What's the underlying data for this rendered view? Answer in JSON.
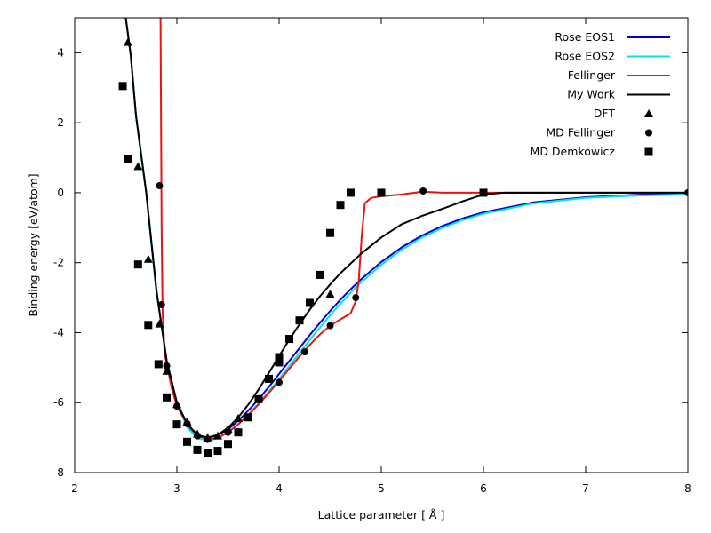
{
  "chart_data": {
    "type": "line",
    "title": "",
    "xlabel": "Lattice parameter [ Å ]",
    "ylabel": "Binding energy [eV/atom]",
    "xlim": [
      2,
      8
    ],
    "ylim": [
      -8,
      5
    ],
    "xticks": [
      "2",
      "3",
      "4",
      "5",
      "6",
      "7",
      "8"
    ],
    "yticks": [
      "-8",
      "-6",
      "-4",
      "-2",
      "0",
      "2",
      "4"
    ],
    "grid": false,
    "legend_position": "top-right",
    "series": [
      {
        "name": "Rose EOS1",
        "kind": "line",
        "color": "#0000cc",
        "points": [
          [
            2.5,
            5.0
          ],
          [
            2.55,
            3.9
          ],
          [
            2.6,
            2.2
          ],
          [
            2.7,
            0.0
          ],
          [
            2.8,
            -2.8
          ],
          [
            2.9,
            -4.8
          ],
          [
            3.0,
            -6.0
          ],
          [
            3.1,
            -6.65
          ],
          [
            3.2,
            -6.95
          ],
          [
            3.3,
            -7.0
          ],
          [
            3.4,
            -6.93
          ],
          [
            3.5,
            -6.76
          ],
          [
            3.6,
            -6.52
          ],
          [
            3.7,
            -6.22
          ],
          [
            3.8,
            -5.9
          ],
          [
            3.9,
            -5.55
          ],
          [
            4.0,
            -5.18
          ],
          [
            4.1,
            -4.81
          ],
          [
            4.2,
            -4.44
          ],
          [
            4.3,
            -4.07
          ],
          [
            4.4,
            -3.72
          ],
          [
            4.5,
            -3.38
          ],
          [
            4.6,
            -3.06
          ],
          [
            4.7,
            -2.76
          ],
          [
            4.8,
            -2.48
          ],
          [
            5.0,
            -1.98
          ],
          [
            5.2,
            -1.56
          ],
          [
            5.4,
            -1.22
          ],
          [
            5.6,
            -0.95
          ],
          [
            5.8,
            -0.73
          ],
          [
            6.0,
            -0.56
          ],
          [
            6.5,
            -0.27
          ],
          [
            7.0,
            -0.13
          ],
          [
            7.5,
            -0.06
          ],
          [
            8.0,
            -0.03
          ]
        ]
      },
      {
        "name": "Rose EOS2",
        "kind": "line",
        "color": "#00e5ee",
        "points": [
          [
            2.5,
            5.0
          ],
          [
            2.55,
            3.9
          ],
          [
            2.6,
            2.2
          ],
          [
            2.7,
            0.0
          ],
          [
            2.8,
            -2.8
          ],
          [
            2.9,
            -4.8
          ],
          [
            3.0,
            -6.02
          ],
          [
            3.1,
            -6.7
          ],
          [
            3.2,
            -7.02
          ],
          [
            3.3,
            -7.08
          ],
          [
            3.4,
            -7.02
          ],
          [
            3.5,
            -6.86
          ],
          [
            3.6,
            -6.62
          ],
          [
            3.7,
            -6.34
          ],
          [
            3.8,
            -6.02
          ],
          [
            3.9,
            -5.68
          ],
          [
            4.0,
            -5.32
          ],
          [
            4.1,
            -4.95
          ],
          [
            4.2,
            -4.58
          ],
          [
            4.3,
            -4.21
          ],
          [
            4.4,
            -3.85
          ],
          [
            4.5,
            -3.5
          ],
          [
            4.6,
            -3.17
          ],
          [
            4.7,
            -2.86
          ],
          [
            4.8,
            -2.57
          ],
          [
            5.0,
            -2.06
          ],
          [
            5.2,
            -1.63
          ],
          [
            5.4,
            -1.28
          ],
          [
            5.6,
            -1.0
          ],
          [
            5.8,
            -0.78
          ],
          [
            6.0,
            -0.6
          ],
          [
            6.5,
            -0.3
          ],
          [
            7.0,
            -0.15
          ],
          [
            7.5,
            -0.08
          ],
          [
            8.0,
            -0.05
          ]
        ]
      },
      {
        "name": "Fellinger",
        "kind": "line",
        "color": "#ee1111",
        "points": [
          [
            2.84,
            5.0
          ],
          [
            2.845,
            2.0
          ],
          [
            2.85,
            -1.0
          ],
          [
            2.86,
            -3.4
          ],
          [
            2.88,
            -4.6
          ],
          [
            2.95,
            -5.6
          ],
          [
            3.0,
            -6.1
          ],
          [
            3.1,
            -6.6
          ],
          [
            3.2,
            -6.95
          ],
          [
            3.3,
            -7.05
          ],
          [
            3.4,
            -7.0
          ],
          [
            3.5,
            -6.85
          ],
          [
            3.6,
            -6.62
          ],
          [
            3.7,
            -6.35
          ],
          [
            3.8,
            -6.05
          ],
          [
            3.9,
            -5.72
          ],
          [
            4.0,
            -5.38
          ],
          [
            4.1,
            -5.03
          ],
          [
            4.2,
            -4.68
          ],
          [
            4.3,
            -4.35
          ],
          [
            4.4,
            -4.05
          ],
          [
            4.5,
            -3.8
          ],
          [
            4.6,
            -3.62
          ],
          [
            4.7,
            -3.45
          ],
          [
            4.75,
            -3.1
          ],
          [
            4.78,
            -2.5
          ],
          [
            4.81,
            -1.2
          ],
          [
            4.84,
            -0.3
          ],
          [
            4.9,
            -0.15
          ],
          [
            5.0,
            -0.1
          ],
          [
            5.2,
            -0.05
          ],
          [
            5.4,
            0.03
          ],
          [
            5.6,
            0.0
          ],
          [
            8.0,
            0.0
          ]
        ]
      },
      {
        "name": "My Work",
        "kind": "line",
        "color": "#000000",
        "points": [
          [
            2.5,
            5.0
          ],
          [
            2.55,
            3.9
          ],
          [
            2.6,
            2.2
          ],
          [
            2.7,
            0.0
          ],
          [
            2.8,
            -2.8
          ],
          [
            2.9,
            -4.8
          ],
          [
            3.0,
            -6.0
          ],
          [
            3.1,
            -6.6
          ],
          [
            3.2,
            -6.92
          ],
          [
            3.3,
            -7.0
          ],
          [
            3.4,
            -6.92
          ],
          [
            3.5,
            -6.72
          ],
          [
            3.6,
            -6.42
          ],
          [
            3.7,
            -6.05
          ],
          [
            3.8,
            -5.62
          ],
          [
            3.9,
            -5.15
          ],
          [
            4.0,
            -4.67
          ],
          [
            4.1,
            -4.2
          ],
          [
            4.2,
            -3.76
          ],
          [
            4.3,
            -3.34
          ],
          [
            4.4,
            -2.96
          ],
          [
            4.5,
            -2.62
          ],
          [
            4.6,
            -2.3
          ],
          [
            4.8,
            -1.75
          ],
          [
            5.0,
            -1.28
          ],
          [
            5.2,
            -0.9
          ],
          [
            5.4,
            -0.66
          ],
          [
            5.6,
            -0.46
          ],
          [
            5.8,
            -0.24
          ],
          [
            6.0,
            -0.05
          ],
          [
            6.2,
            0.0
          ],
          [
            8.0,
            0.0
          ]
        ]
      },
      {
        "name": "DFT",
        "kind": "markers",
        "marker": "triangle",
        "color": "#000000",
        "points": [
          [
            2.52,
            4.3
          ],
          [
            2.62,
            0.75
          ],
          [
            2.72,
            -1.9
          ],
          [
            2.83,
            -3.75
          ],
          [
            2.9,
            -5.1
          ],
          [
            3.0,
            -6.05
          ],
          [
            3.1,
            -6.55
          ],
          [
            3.2,
            -6.9
          ],
          [
            3.3,
            -7.0
          ],
          [
            3.4,
            -6.95
          ],
          [
            3.5,
            -6.75
          ],
          [
            3.6,
            -6.45
          ],
          [
            4.5,
            -2.9
          ]
        ]
      },
      {
        "name": "MD Fellinger",
        "kind": "markers",
        "marker": "circle",
        "color": "#000000",
        "points": [
          [
            2.83,
            0.2
          ],
          [
            2.85,
            -3.2
          ],
          [
            2.9,
            -4.95
          ],
          [
            3.0,
            -6.1
          ],
          [
            3.1,
            -6.6
          ],
          [
            3.2,
            -6.95
          ],
          [
            3.3,
            -7.05
          ],
          [
            3.5,
            -6.85
          ],
          [
            3.8,
            -5.9
          ],
          [
            4.0,
            -5.42
          ],
          [
            4.25,
            -4.55
          ],
          [
            4.5,
            -3.8
          ],
          [
            4.75,
            -3.0
          ],
          [
            5.41,
            0.05
          ],
          [
            6.0,
            0.0
          ],
          [
            8.0,
            0.0
          ]
        ]
      },
      {
        "name": "MD Demkowicz",
        "kind": "markers",
        "marker": "square",
        "color": "#000000",
        "points": [
          [
            2.47,
            3.05
          ],
          [
            2.52,
            0.95
          ],
          [
            2.62,
            -2.05
          ],
          [
            2.72,
            -3.78
          ],
          [
            2.82,
            -4.9
          ],
          [
            2.9,
            -5.85
          ],
          [
            3.0,
            -6.62
          ],
          [
            3.1,
            -7.12
          ],
          [
            3.2,
            -7.35
          ],
          [
            3.3,
            -7.45
          ],
          [
            3.4,
            -7.38
          ],
          [
            3.5,
            -7.18
          ],
          [
            3.6,
            -6.85
          ],
          [
            3.7,
            -6.42
          ],
          [
            3.8,
            -5.9
          ],
          [
            3.9,
            -5.32
          ],
          [
            4.0,
            -4.85
          ],
          [
            4.0,
            -4.7
          ],
          [
            4.1,
            -4.18
          ],
          [
            4.2,
            -3.65
          ],
          [
            4.3,
            -3.15
          ],
          [
            4.4,
            -2.35
          ],
          [
            4.5,
            -1.15
          ],
          [
            4.6,
            -0.35
          ],
          [
            4.7,
            0.0
          ],
          [
            5.0,
            0.0
          ],
          [
            6.0,
            0.0
          ]
        ]
      }
    ]
  }
}
